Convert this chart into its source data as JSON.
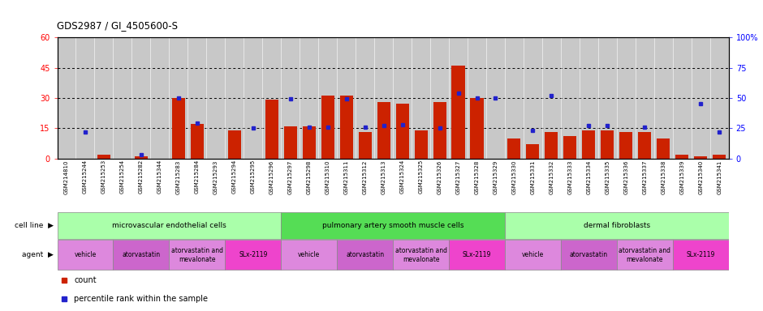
{
  "title": "GDS2987 / GI_4505600-S",
  "samples": [
    "GSM214810",
    "GSM215244",
    "GSM215253",
    "GSM215254",
    "GSM215282",
    "GSM215344",
    "GSM215283",
    "GSM215284",
    "GSM215293",
    "GSM215294",
    "GSM215295",
    "GSM215296",
    "GSM215297",
    "GSM215298",
    "GSM215310",
    "GSM215311",
    "GSM215312",
    "GSM215313",
    "GSM215324",
    "GSM215325",
    "GSM215326",
    "GSM215327",
    "GSM215328",
    "GSM215329",
    "GSM215330",
    "GSM215331",
    "GSM215332",
    "GSM215333",
    "GSM215334",
    "GSM215335",
    "GSM215336",
    "GSM215337",
    "GSM215338",
    "GSM215339",
    "GSM215340",
    "GSM215341"
  ],
  "counts": [
    0,
    0,
    2,
    0,
    1,
    0,
    30,
    17,
    0,
    14,
    0,
    29,
    16,
    16,
    31,
    31,
    13,
    28,
    27,
    14,
    28,
    46,
    30,
    0,
    10,
    7,
    13,
    11,
    14,
    14,
    13,
    13,
    10,
    2,
    1,
    2
  ],
  "percentiles": [
    0,
    22,
    0,
    0,
    3,
    0,
    50,
    29,
    0,
    0,
    25,
    0,
    49,
    26,
    26,
    49,
    26,
    27,
    28,
    0,
    25,
    54,
    50,
    50,
    0,
    23,
    52,
    0,
    27,
    27,
    0,
    26,
    0,
    0,
    45,
    22
  ],
  "cell_lines": [
    {
      "label": "microvascular endothelial cells",
      "start": 0,
      "end": 12,
      "color": "#aaffaa"
    },
    {
      "label": "pulmonary artery smooth muscle cells",
      "start": 12,
      "end": 24,
      "color": "#55dd55"
    },
    {
      "label": "dermal fibroblasts",
      "start": 24,
      "end": 36,
      "color": "#aaffaa"
    }
  ],
  "agents": [
    {
      "label": "vehicle",
      "start": 0,
      "end": 3,
      "color": "#dd88dd"
    },
    {
      "label": "atorvastatin",
      "start": 3,
      "end": 6,
      "color": "#cc66cc"
    },
    {
      "label": "atorvastatin and\nmevalonate",
      "start": 6,
      "end": 9,
      "color": "#dd88dd"
    },
    {
      "label": "SLx-2119",
      "start": 9,
      "end": 12,
      "color": "#ee44cc"
    },
    {
      "label": "vehicle",
      "start": 12,
      "end": 15,
      "color": "#dd88dd"
    },
    {
      "label": "atorvastatin",
      "start": 15,
      "end": 18,
      "color": "#cc66cc"
    },
    {
      "label": "atorvastatin and\nmevalonate",
      "start": 18,
      "end": 21,
      "color": "#dd88dd"
    },
    {
      "label": "SLx-2119",
      "start": 21,
      "end": 24,
      "color": "#ee44cc"
    },
    {
      "label": "vehicle",
      "start": 24,
      "end": 27,
      "color": "#dd88dd"
    },
    {
      "label": "atorvastatin",
      "start": 27,
      "end": 30,
      "color": "#cc66cc"
    },
    {
      "label": "atorvastatin and\nmevalonate",
      "start": 30,
      "end": 33,
      "color": "#dd88dd"
    },
    {
      "label": "SLx-2119",
      "start": 33,
      "end": 36,
      "color": "#ee44cc"
    }
  ],
  "bar_color": "#CC2200",
  "dot_color": "#2222CC",
  "left_ylim": [
    0,
    60
  ],
  "right_ylim": [
    0,
    100
  ],
  "left_yticks": [
    0,
    15,
    30,
    45,
    60
  ],
  "right_yticks": [
    0,
    25,
    50,
    75,
    100
  ],
  "bg_color": "#C8C8C8",
  "figsize": [
    9.4,
    3.84
  ],
  "dpi": 100
}
